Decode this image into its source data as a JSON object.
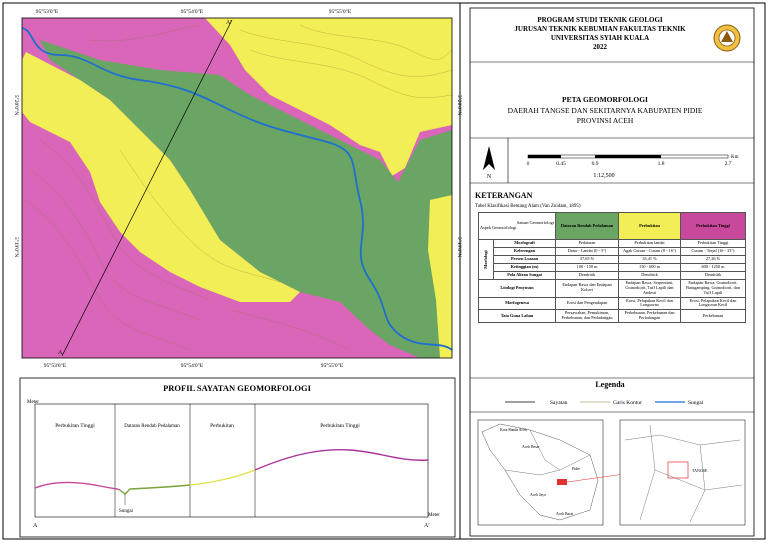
{
  "map": {
    "top_ticks": [
      "95°53'0\"E",
      "95°54'0\"E",
      "95°55'0\"E"
    ],
    "bottom_ticks": [
      "95°53'0\"E",
      "95°54'0\"E",
      "95°55'0\"E"
    ],
    "left_ticks": [
      "5°20'0\"N",
      "5°19'0\"N"
    ],
    "right_ticks": [
      "5°20'0\"N",
      "5°19'0\"N"
    ],
    "section_start": "A",
    "section_end": "A'"
  },
  "profile": {
    "title": "PROFIL SAYATAN GEOMORFOLOGI",
    "left_unit": "Meter",
    "right_unit": "Meter",
    "start": "A",
    "end": "A'",
    "units": [
      "Perbukitan Tinggi",
      "Dataran Rendah Pedalaman",
      "Perbukitan",
      "Perbukitan Tinggi"
    ],
    "river": "Sungai"
  },
  "header": {
    "lines": [
      "PROGRAM STUDI TEKNIK GEOLOGI",
      "JURUSAN TEKNIK KEBUMIAN FAKULTAS TEKNIK",
      "UNIVERSITAS SYIAH KUALA",
      "2022"
    ],
    "map_title": "PETA GEOMORFOLOGI",
    "area_lines": [
      "DAERAH TANGSE DAN SEKITARNYA KABUPATEN PIDIE",
      "PROVINSI ACEH"
    ],
    "north": "N",
    "scale_ticks": [
      "0",
      "0.45",
      "0.9",
      "1.8",
      "2.7"
    ],
    "scale_unit": "Km",
    "scale": "1:12,500"
  },
  "keterangan": {
    "title": "KETERANGAN",
    "subtitle": "Tabel Klasifikasi Bentang Alam (Van Zuidam, 1895)"
  },
  "table": {
    "corner_top": "Satuan Geomorfologi",
    "corner_bottom": "Aspek Geomorfologi",
    "columns": [
      "Dataran Rendah Pedalaman",
      "Perbukitan",
      "Perbukitan Tinggi"
    ],
    "morfologi": {
      "label": "Morfologi",
      "rows": [
        {
          "label": "Morfografi",
          "cells": [
            "Pedataran",
            "Perbukitan landai",
            "Perbukitan Tinggi"
          ]
        },
        {
          "label": "Kelerengan",
          "cells": [
            "Datar - Landai (0 - 5°)",
            "Agak Curam - Curam (8 - 16°)",
            "Curam - Terjal (16 - 35°)"
          ]
        },
        {
          "label": "Persen Luasan",
          "cells": [
            "37,65 %",
            "35,41 %",
            "27,26 %"
          ]
        },
        {
          "label": "Ketinggian (m)",
          "cells": [
            "100 - 150 m",
            "150 - 600 m",
            "600 - 1250 m"
          ]
        },
        {
          "label": "Pola Aliran Sungai",
          "cells": [
            "Dendritik",
            "Dendritik",
            "Dendritik"
          ]
        }
      ]
    },
    "rows": [
      {
        "label": "Litologi Penyusun",
        "cells": [
          "Endapan Rawa dan Endapan Koluvi",
          "Endapan Rawa, Serpentinit, Granodiorit, Tuff Lapili dan Andesit",
          "Endapan Rawa, Granodiorit, Batugamping, Granodiorit, dan Tuff Lapili"
        ]
      },
      {
        "label": "Morfogenesa",
        "cells": [
          "Erosi dan Pengendapan",
          "Erosi, Pelapukan Kecil dan Longsoran",
          "Erosi, Pelapukan Kecil dan Longsoran Kecil"
        ]
      },
      {
        "label": "Tata Guna Lahan",
        "cells": [
          "Persawahan, Pemukiman, Perkebunan, dan Perladangan",
          "Perkebunan, Perkebunan dan Perladangan",
          "Perkebunan"
        ]
      }
    ]
  },
  "legend": {
    "title": "Legenda",
    "items": [
      "Sayatan",
      "Garis Kontur",
      "Sungai"
    ]
  },
  "insets": {
    "left_labels": [
      "Kota Banda Aceh",
      "Aceh Besar",
      "Pidie",
      "Aceh Jaya",
      "Aceh Barat"
    ],
    "right_labels": [
      "TANGSE"
    ]
  }
}
